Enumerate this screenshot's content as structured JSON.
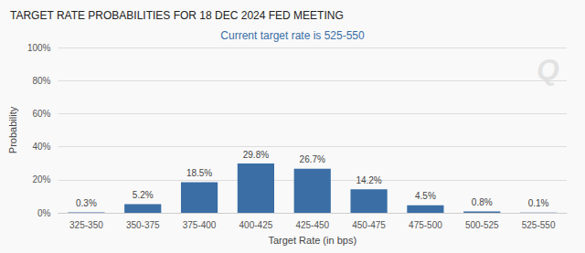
{
  "chart_data": {
    "type": "bar",
    "title": "TARGET RATE PROBABILITIES FOR 18 DEC 2024 FED MEETING",
    "subtitle": "Current target rate is 525-550",
    "xlabel": "Target Rate (in bps)",
    "ylabel": "Probability",
    "categories": [
      "325-350",
      "350-375",
      "375-400",
      "400-425",
      "425-450",
      "450-475",
      "475-500",
      "500-525",
      "525-550"
    ],
    "values": [
      0.3,
      5.2,
      18.5,
      29.8,
      26.7,
      14.2,
      4.5,
      0.8,
      0.1
    ],
    "value_labels": [
      "0.3%",
      "5.2%",
      "18.5%",
      "29.8%",
      "26.7%",
      "14.2%",
      "4.5%",
      "0.8%",
      "0.1%"
    ],
    "data_labels": true,
    "color": "#3a6ea5",
    "ylim": [
      0,
      100
    ],
    "yticks": [
      {
        "value": 0,
        "label": "0%"
      },
      {
        "value": 20,
        "label": "20%"
      },
      {
        "value": 40,
        "label": "40%"
      },
      {
        "value": 60,
        "label": "60%"
      },
      {
        "value": 80,
        "label": "80%"
      },
      {
        "value": 100,
        "label": "100%"
      }
    ],
    "grid": true,
    "annotations": [
      "Q"
    ]
  }
}
